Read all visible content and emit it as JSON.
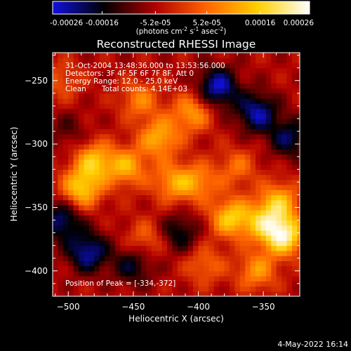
{
  "chart_data": {
    "type": "heatmap",
    "title": "Reconstructed RHESSI Image",
    "xlabel": "Heliocentric X (arcsec)",
    "ylabel": "Heliocentric Y (arcsec)",
    "xlim": [
      -512,
      -322
    ],
    "ylim": [
      -420,
      -228
    ],
    "x_ticks": [
      -500,
      -450,
      -400,
      -350
    ],
    "y_ticks": [
      -400,
      -350,
      -300,
      -250
    ],
    "colorbar": {
      "min": -0.00026,
      "max": 0.00026,
      "ticks": [
        -0.00026,
        -0.00016,
        -5.2e-05,
        5.2e-05,
        0.00016,
        0.00026
      ],
      "tick_labels": [
        "-0.00026",
        "-0.00016",
        "-5.2e-05",
        "5.2e-05",
        "0.00016",
        "0.00026"
      ],
      "unit_label": "(photons cm",
      "unit_exp1": "-2",
      "unit_mid": " s",
      "unit_exp2": "-1",
      "unit_end": " asec",
      "unit_exp3": "-2",
      "unit_close": ")",
      "colormap_stops": [
        "#1010e0",
        "#000000",
        "#b00000",
        "#ff6600",
        "#ffd000",
        "#ffffff"
      ]
    },
    "annotations": [
      "31-Oct-2004 13:48:36.000 to 13:53:56.000",
      "Detectors: 3F 4F 5F 6F 7F 8F, Att 0",
      "Energy Range: 12.0 - 25.0 keV",
      "Clean",
      "Total counts: 4.14E+03"
    ],
    "peak_label": "Position of Peak = [-334,-372]",
    "peak_position": [
      -334,
      -372
    ],
    "hotspots": [
      {
        "x": -490,
        "y": -335,
        "value": 0.0002
      },
      {
        "x": -480,
        "y": -313,
        "value": 0.00018
      },
      {
        "x": -455,
        "y": -318,
        "value": 0.00016
      },
      {
        "x": -430,
        "y": -295,
        "value": 0.00017
      },
      {
        "x": -445,
        "y": -265,
        "value": 0.00012
      },
      {
        "x": -405,
        "y": -275,
        "value": 0.00015
      },
      {
        "x": -420,
        "y": -330,
        "value": 0.00014
      },
      {
        "x": -400,
        "y": -330,
        "value": 0.00013
      },
      {
        "x": -375,
        "y": -358,
        "value": 0.0002
      },
      {
        "x": -350,
        "y": -362,
        "value": 0.00016
      },
      {
        "x": -334,
        "y": -372,
        "value": 0.00026
      },
      {
        "x": -338,
        "y": -345,
        "value": 0.00017
      },
      {
        "x": -370,
        "y": -318,
        "value": 0.0001
      },
      {
        "x": -440,
        "y": -375,
        "value": 0.0001
      },
      {
        "x": -395,
        "y": -395,
        "value": 0.0001
      },
      {
        "x": -355,
        "y": -400,
        "value": 0.00014
      },
      {
        "x": -505,
        "y": -250,
        "value": 8e-05
      }
    ],
    "coldspots": [
      {
        "x": -385,
        "y": -255,
        "value": -0.0002
      },
      {
        "x": -355,
        "y": -275,
        "value": -0.00018
      },
      {
        "x": -330,
        "y": -295,
        "value": -0.00014
      },
      {
        "x": -485,
        "y": -385,
        "value": -0.00018
      },
      {
        "x": -450,
        "y": -395,
        "value": -0.00012
      },
      {
        "x": -505,
        "y": -360,
        "value": -0.00016
      },
      {
        "x": -415,
        "y": -370,
        "value": -0.00012
      },
      {
        "x": -500,
        "y": -290,
        "value": -6e-05
      }
    ]
  },
  "timestamp": "4-May-2022 16:14"
}
